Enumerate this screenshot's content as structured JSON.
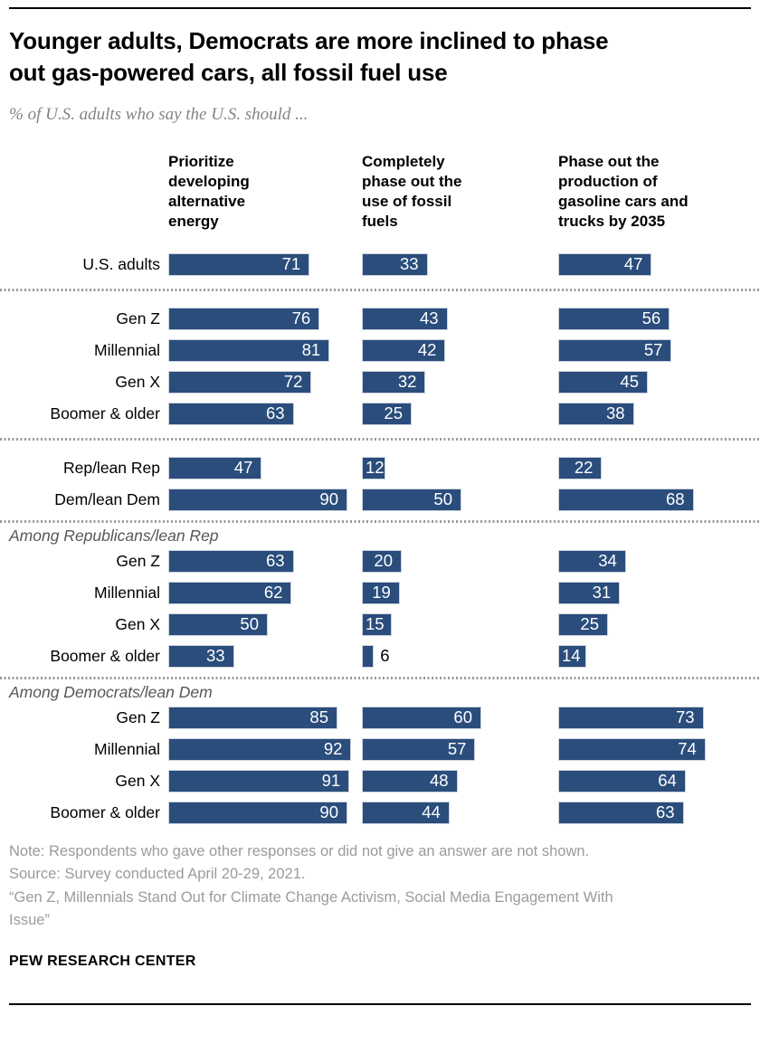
{
  "header": {
    "title": "Younger adults, Democrats are more inclined to phase\nout gas-powered cars, all fossil fuel use",
    "subtitle": "% of U.S. adults who say the U.S. should ..."
  },
  "chart_data": {
    "type": "bar",
    "orientation": "horizontal",
    "unit": "%",
    "xlim": [
      0,
      100
    ],
    "bar_color": "#2a4d7c",
    "grid": false,
    "legend": false,
    "columns": [
      "Prioritize developing alternative energy",
      "Completely phase out the use of fossil fuels",
      "Phase out the production of gasoline cars and trucks by 2035"
    ],
    "groups": [
      {
        "label": null,
        "rows": [
          {
            "label": "U.S. adults",
            "values": [
              71,
              33,
              47
            ]
          }
        ]
      },
      {
        "label": null,
        "rows": [
          {
            "label": "Gen Z",
            "values": [
              76,
              43,
              56
            ]
          },
          {
            "label": "Millennial",
            "values": [
              81,
              42,
              57
            ]
          },
          {
            "label": "Gen X",
            "values": [
              72,
              32,
              45
            ]
          },
          {
            "label": "Boomer & older",
            "values": [
              63,
              25,
              38
            ]
          }
        ]
      },
      {
        "label": null,
        "rows": [
          {
            "label": "Rep/lean Rep",
            "values": [
              47,
              12,
              22
            ]
          },
          {
            "label": "Dem/lean Dem",
            "values": [
              90,
              50,
              68
            ]
          }
        ]
      },
      {
        "label": "Among Republicans/lean Rep",
        "rows": [
          {
            "label": "Gen Z",
            "values": [
              63,
              20,
              34
            ]
          },
          {
            "label": "Millennial",
            "values": [
              62,
              19,
              31
            ]
          },
          {
            "label": "Gen X",
            "values": [
              50,
              15,
              25
            ]
          },
          {
            "label": "Boomer & older",
            "values": [
              33,
              6,
              14
            ]
          }
        ]
      },
      {
        "label": "Among Democrats/lean Dem",
        "rows": [
          {
            "label": "Gen Z",
            "values": [
              85,
              60,
              73
            ]
          },
          {
            "label": "Millennial",
            "values": [
              92,
              57,
              74
            ]
          },
          {
            "label": "Gen X",
            "values": [
              91,
              48,
              64
            ]
          },
          {
            "label": "Boomer & older",
            "values": [
              90,
              44,
              63
            ]
          }
        ]
      }
    ]
  },
  "footer": {
    "note": "Note: Respondents who gave other responses or did not give an answer are not shown.",
    "source": "Source: Survey conducted April 20-29, 2021.",
    "report": "“Gen Z, Millennials Stand Out for Climate Change Activism, Social Media Engagement With\nIssue”",
    "brand": "PEW RESEARCH CENTER"
  }
}
